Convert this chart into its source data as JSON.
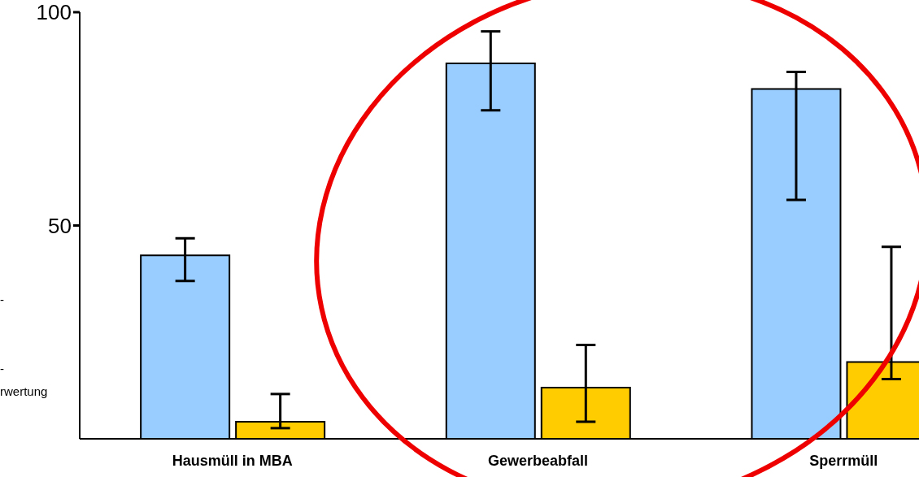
{
  "chart_data": {
    "type": "bar",
    "categories": [
      "Hausmüll in MBA",
      "Gewerbeabfall",
      "Sperrmüll"
    ],
    "series": [
      {
        "color": "#99ccff",
        "values": [
          43,
          88,
          82
        ],
        "errors": [
          [
            37,
            47
          ],
          [
            77,
            95.5
          ],
          [
            56,
            86
          ]
        ]
      },
      {
        "color": "#ffcc00",
        "values": [
          4,
          12,
          18
        ],
        "errors": [
          [
            2.5,
            10.5
          ],
          [
            4,
            22
          ],
          [
            14,
            45
          ]
        ]
      }
    ],
    "ylim": [
      0,
      100
    ],
    "yticks": [
      50,
      100
    ],
    "annotations": [
      "-",
      "-",
      "rwertung"
    ]
  }
}
